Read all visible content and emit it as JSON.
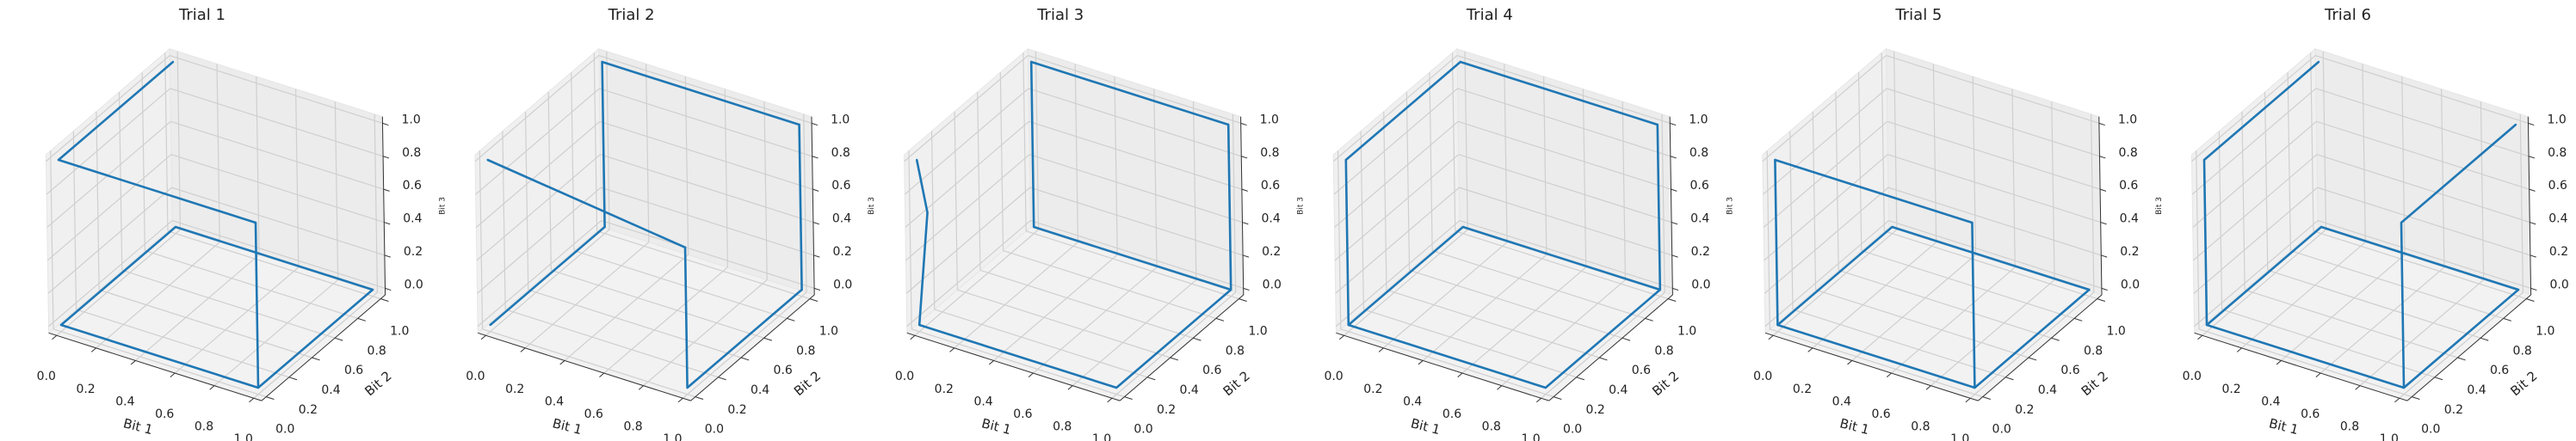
{
  "chart_data": [
    {
      "type": "line3d",
      "title": "Trial 1",
      "xlabel": "Bit 1",
      "ylabel": "Bit 2",
      "zlabel": "Bit 3",
      "color": "#1f77b4",
      "grid": true,
      "x": [
        0,
        0,
        1,
        1,
        0,
        0,
        1,
        1
      ],
      "y": [
        1,
        0,
        0,
        0,
        0,
        1,
        1,
        0
      ],
      "z": [
        1,
        1,
        1,
        0,
        0,
        0,
        0,
        0
      ],
      "xlim": [
        -0.04,
        1.04
      ],
      "ylim": [
        -0.04,
        1.04
      ],
      "zlim": [
        -0.04,
        1.04
      ],
      "xticks": [
        {
          "value": 0,
          "label": "0.0"
        },
        {
          "value": 0.2,
          "label": "0.2"
        },
        {
          "value": 0.4,
          "label": "0.4"
        },
        {
          "value": 0.6,
          "label": "0.6"
        },
        {
          "value": 0.8,
          "label": "0.8"
        },
        {
          "value": 1,
          "label": "1.0"
        }
      ],
      "yticks": [
        {
          "value": 0,
          "label": "0.0"
        },
        {
          "value": 0.2,
          "label": "0.2"
        },
        {
          "value": 0.4,
          "label": "0.4"
        },
        {
          "value": 0.6,
          "label": "0.6"
        },
        {
          "value": 0.8,
          "label": "0.8"
        },
        {
          "value": 1,
          "label": "1.0"
        }
      ],
      "zticks": [
        {
          "value": 0,
          "label": "0.0"
        },
        {
          "value": 0.2,
          "label": "0.2"
        },
        {
          "value": 0.4,
          "label": "0.4"
        },
        {
          "value": 0.6,
          "label": "0.6"
        },
        {
          "value": 0.8,
          "label": "0.8"
        },
        {
          "value": 1,
          "label": "1.0"
        }
      ]
    },
    {
      "type": "line3d",
      "title": "Trial 2",
      "xlabel": "Bit 1",
      "ylabel": "Bit 2",
      "zlabel": "Bit 3",
      "color": "#1f77b4",
      "grid": true,
      "x": [
        0,
        1,
        1,
        1,
        1,
        0,
        0,
        0
      ],
      "y": [
        0,
        0,
        0,
        1,
        1,
        1,
        1,
        0
      ],
      "z": [
        1,
        0.85,
        0,
        0,
        1,
        1,
        0,
        0
      ],
      "xlim": [
        -0.04,
        1.04
      ],
      "ylim": [
        -0.04,
        1.04
      ],
      "zlim": [
        -0.04,
        1.04
      ],
      "xticks": [
        {
          "value": 0,
          "label": "0.0"
        },
        {
          "value": 0.2,
          "label": "0.2"
        },
        {
          "value": 0.4,
          "label": "0.4"
        },
        {
          "value": 0.6,
          "label": "0.6"
        },
        {
          "value": 0.8,
          "label": "0.8"
        },
        {
          "value": 1,
          "label": "1.0"
        }
      ],
      "yticks": [
        {
          "value": 0,
          "label": "0.0"
        },
        {
          "value": 0.2,
          "label": "0.2"
        },
        {
          "value": 0.4,
          "label": "0.4"
        },
        {
          "value": 0.6,
          "label": "0.6"
        },
        {
          "value": 0.8,
          "label": "0.8"
        },
        {
          "value": 1,
          "label": "1.0"
        }
      ],
      "zticks": [
        {
          "value": 0,
          "label": "0.0"
        },
        {
          "value": 0.2,
          "label": "0.2"
        },
        {
          "value": 0.4,
          "label": "0.4"
        },
        {
          "value": 0.6,
          "label": "0.6"
        },
        {
          "value": 0.8,
          "label": "0.8"
        },
        {
          "value": 1,
          "label": "1.0"
        }
      ]
    },
    {
      "type": "line3d",
      "title": "Trial 3",
      "xlabel": "Bit 1",
      "ylabel": "Bit 2",
      "zlabel": "Bit 3",
      "color": "#1f77b4",
      "grid": true,
      "x": [
        0,
        0.05,
        0,
        1,
        1,
        1,
        0,
        0,
        1
      ],
      "y": [
        0,
        0,
        0,
        0,
        1,
        1,
        1,
        1,
        1
      ],
      "z": [
        1,
        0.7,
        0,
        0,
        0,
        1,
        1,
        0,
        0
      ],
      "xlim": [
        -0.04,
        1.04
      ],
      "ylim": [
        -0.04,
        1.04
      ],
      "zlim": [
        -0.04,
        1.04
      ],
      "xticks": [
        {
          "value": 0,
          "label": "0.0"
        },
        {
          "value": 0.2,
          "label": "0.2"
        },
        {
          "value": 0.4,
          "label": "0.4"
        },
        {
          "value": 0.6,
          "label": "0.6"
        },
        {
          "value": 0.8,
          "label": "0.8"
        },
        {
          "value": 1,
          "label": "1.0"
        }
      ],
      "yticks": [
        {
          "value": 0,
          "label": "0.0"
        },
        {
          "value": 0.2,
          "label": "0.2"
        },
        {
          "value": 0.4,
          "label": "0.4"
        },
        {
          "value": 0.6,
          "label": "0.6"
        },
        {
          "value": 0.8,
          "label": "0.8"
        },
        {
          "value": 1,
          "label": "1.0"
        }
      ],
      "zticks": [
        {
          "value": 0,
          "label": "0.0"
        },
        {
          "value": 0.2,
          "label": "0.2"
        },
        {
          "value": 0.4,
          "label": "0.4"
        },
        {
          "value": 0.6,
          "label": "0.6"
        },
        {
          "value": 0.8,
          "label": "0.8"
        },
        {
          "value": 1,
          "label": "1.0"
        }
      ]
    },
    {
      "type": "line3d",
      "title": "Trial 4",
      "xlabel": "Bit 1",
      "ylabel": "Bit 2",
      "zlabel": "Bit 3",
      "color": "#1f77b4",
      "grid": true,
      "x": [
        0,
        0,
        0,
        1,
        1,
        1,
        0,
        0,
        1
      ],
      "y": [
        0,
        0,
        1,
        1,
        1,
        0,
        0,
        1,
        1
      ],
      "z": [
        0,
        1,
        1,
        1,
        0,
        0,
        0,
        0,
        0
      ],
      "xlim": [
        -0.04,
        1.04
      ],
      "ylim": [
        -0.04,
        1.04
      ],
      "zlim": [
        -0.04,
        1.04
      ],
      "xticks": [
        {
          "value": 0,
          "label": "0.0"
        },
        {
          "value": 0.2,
          "label": "0.2"
        },
        {
          "value": 0.4,
          "label": "0.4"
        },
        {
          "value": 0.6,
          "label": "0.6"
        },
        {
          "value": 0.8,
          "label": "0.8"
        },
        {
          "value": 1,
          "label": "1.0"
        }
      ],
      "yticks": [
        {
          "value": 0,
          "label": "0.0"
        },
        {
          "value": 0.2,
          "label": "0.2"
        },
        {
          "value": 0.4,
          "label": "0.4"
        },
        {
          "value": 0.6,
          "label": "0.6"
        },
        {
          "value": 0.8,
          "label": "0.8"
        },
        {
          "value": 1,
          "label": "1.0"
        }
      ],
      "zticks": [
        {
          "value": 0,
          "label": "0.0"
        },
        {
          "value": 0.2,
          "label": "0.2"
        },
        {
          "value": 0.4,
          "label": "0.4"
        },
        {
          "value": 0.6,
          "label": "0.6"
        },
        {
          "value": 0.8,
          "label": "0.8"
        },
        {
          "value": 1,
          "label": "1.0"
        }
      ]
    },
    {
      "type": "line3d",
      "title": "Trial 5",
      "xlabel": "Bit 1",
      "ylabel": "Bit 2",
      "zlabel": "Bit 3",
      "color": "#1f77b4",
      "grid": true,
      "x": [
        1,
        0,
        0,
        1,
        1,
        1,
        0,
        0
      ],
      "y": [
        0,
        0,
        0,
        0,
        0,
        1,
        1,
        0
      ],
      "z": [
        0,
        0,
        1,
        1,
        0,
        0,
        0,
        0
      ],
      "xlim": [
        -0.04,
        1.04
      ],
      "ylim": [
        -0.04,
        1.04
      ],
      "zlim": [
        -0.04,
        1.04
      ],
      "xticks": [
        {
          "value": 0,
          "label": "0.0"
        },
        {
          "value": 0.2,
          "label": "0.2"
        },
        {
          "value": 0.4,
          "label": "0.4"
        },
        {
          "value": 0.6,
          "label": "0.6"
        },
        {
          "value": 0.8,
          "label": "0.8"
        },
        {
          "value": 1,
          "label": "1.0"
        }
      ],
      "yticks": [
        {
          "value": 0,
          "label": "0.0"
        },
        {
          "value": 0.2,
          "label": "0.2"
        },
        {
          "value": 0.4,
          "label": "0.4"
        },
        {
          "value": 0.6,
          "label": "0.6"
        },
        {
          "value": 0.8,
          "label": "0.8"
        },
        {
          "value": 1,
          "label": "1.0"
        }
      ],
      "zticks": [
        {
          "value": 0,
          "label": "0.0"
        },
        {
          "value": 0.2,
          "label": "0.2"
        },
        {
          "value": 0.4,
          "label": "0.4"
        },
        {
          "value": 0.6,
          "label": "0.6"
        },
        {
          "value": 0.8,
          "label": "0.8"
        },
        {
          "value": 1,
          "label": "1.0"
        }
      ]
    },
    {
      "type": "line3d",
      "title": "Trial 6",
      "xlabel": "Bit 1",
      "ylabel": "Bit 2",
      "zlabel": "Bit 3",
      "color": "#1f77b4",
      "grid": true,
      "x": [
        0,
        0,
        0,
        0,
        1,
        1,
        0,
        1,
        1,
        1
      ],
      "y": [
        1,
        0,
        0,
        1,
        1,
        0,
        0,
        0,
        0,
        1
      ],
      "z": [
        1,
        1,
        0,
        0,
        0,
        0,
        0,
        0,
        1,
        1
      ],
      "xlim": [
        -0.04,
        1.04
      ],
      "ylim": [
        -0.04,
        1.04
      ],
      "zlim": [
        -0.04,
        1.04
      ],
      "xticks": [
        {
          "value": 0,
          "label": "0.0"
        },
        {
          "value": 0.2,
          "label": "0.2"
        },
        {
          "value": 0.4,
          "label": "0.4"
        },
        {
          "value": 0.6,
          "label": "0.6"
        },
        {
          "value": 0.8,
          "label": "0.8"
        },
        {
          "value": 1,
          "label": "1.0"
        }
      ],
      "yticks": [
        {
          "value": 0,
          "label": "0.0"
        },
        {
          "value": 0.2,
          "label": "0.2"
        },
        {
          "value": 0.4,
          "label": "0.4"
        },
        {
          "value": 0.6,
          "label": "0.6"
        },
        {
          "value": 0.8,
          "label": "0.8"
        },
        {
          "value": 1,
          "label": "1.0"
        }
      ],
      "zticks": [
        {
          "value": 0,
          "label": "0.0"
        },
        {
          "value": 0.2,
          "label": "0.2"
        },
        {
          "value": 0.4,
          "label": "0.4"
        },
        {
          "value": 0.6,
          "label": "0.6"
        },
        {
          "value": 0.8,
          "label": "0.8"
        },
        {
          "value": 1,
          "label": "1.0"
        }
      ]
    }
  ]
}
